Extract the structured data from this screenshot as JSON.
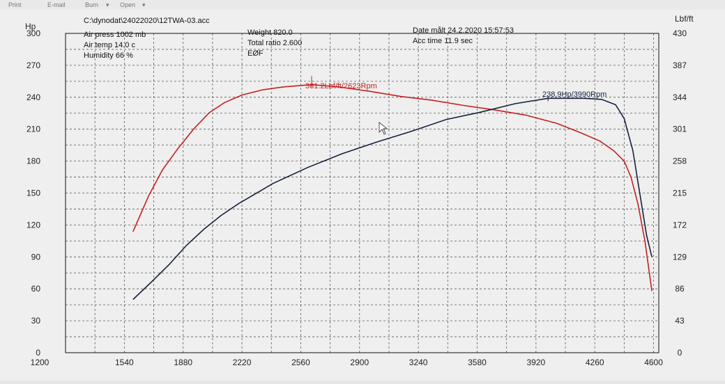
{
  "menu": {
    "items": [
      "Print",
      "E-mail",
      "Burn",
      "Open"
    ]
  },
  "header": {
    "file_path": "C:\\dynodat\\24022020\\12TWA-03.acc",
    "air_press": "Air press  1002 mb",
    "air_temp": "Air temp  14.0 c",
    "humidity": "Humidity   66 %",
    "weight": "Weight   820.0",
    "total_ratio": "Total ratio 2.600",
    "eof": "EØF",
    "date_measured": "Date målt 24.2.2020 15:57:53",
    "acc_time": "Acc time   11.9 sec"
  },
  "colors": {
    "torque": "#c42020",
    "power": "#152040"
  },
  "chart_data": {
    "type": "line",
    "x_ticks": [
      1200,
      1540,
      1880,
      2220,
      2560,
      2900,
      3240,
      3580,
      3920,
      4260,
      4600
    ],
    "y_left_label": "Hp",
    "y_left_ticks": [
      0,
      30,
      60,
      90,
      120,
      150,
      180,
      210,
      240,
      270,
      300
    ],
    "y_right_label": "Lbf/ft",
    "y_right_ticks": [
      0,
      43,
      86,
      129,
      172,
      215,
      258,
      301,
      344,
      387,
      430
    ],
    "xlim": [
      1200,
      4630
    ],
    "ylim_left": [
      0,
      300
    ],
    "ylim_right": [
      0,
      430
    ],
    "grid": true,
    "annotations": {
      "torque_peak": "361.2Lbf/ft/2623Rpm",
      "power_peak": "238.9Hp/3990Rpm"
    },
    "series": [
      {
        "name": "torque",
        "axis": "right",
        "x": [
          1590,
          1680,
          1760,
          1850,
          1940,
          2030,
          2120,
          2220,
          2340,
          2460,
          2623,
          2780,
          2960,
          3140,
          3320,
          3500,
          3680,
          3860,
          4040,
          4180,
          4290,
          4370,
          4430,
          4470,
          4510,
          4550,
          4575,
          4590
        ],
        "values": [
          163,
          211,
          246,
          275,
          301,
          323,
          337,
          347,
          354,
          358,
          361,
          358,
          352,
          345,
          340,
          333,
          327,
          320,
          309,
          296,
          285,
          272,
          258,
          236,
          200,
          150,
          108,
          83
        ]
      },
      {
        "name": "power",
        "axis": "left",
        "x": [
          1590,
          1700,
          1800,
          1900,
          2000,
          2100,
          2200,
          2400,
          2600,
          2800,
          3000,
          3200,
          3400,
          3600,
          3800,
          3990,
          4100,
          4200,
          4300,
          4380,
          4430,
          4480,
          4520,
          4560,
          4590
        ],
        "values": [
          50,
          67,
          83,
          101,
          116,
          129,
          140,
          159,
          174,
          187,
          198,
          208,
          219,
          226,
          234,
          239,
          239,
          239,
          238,
          233,
          220,
          190,
          150,
          110,
          90
        ]
      }
    ]
  }
}
